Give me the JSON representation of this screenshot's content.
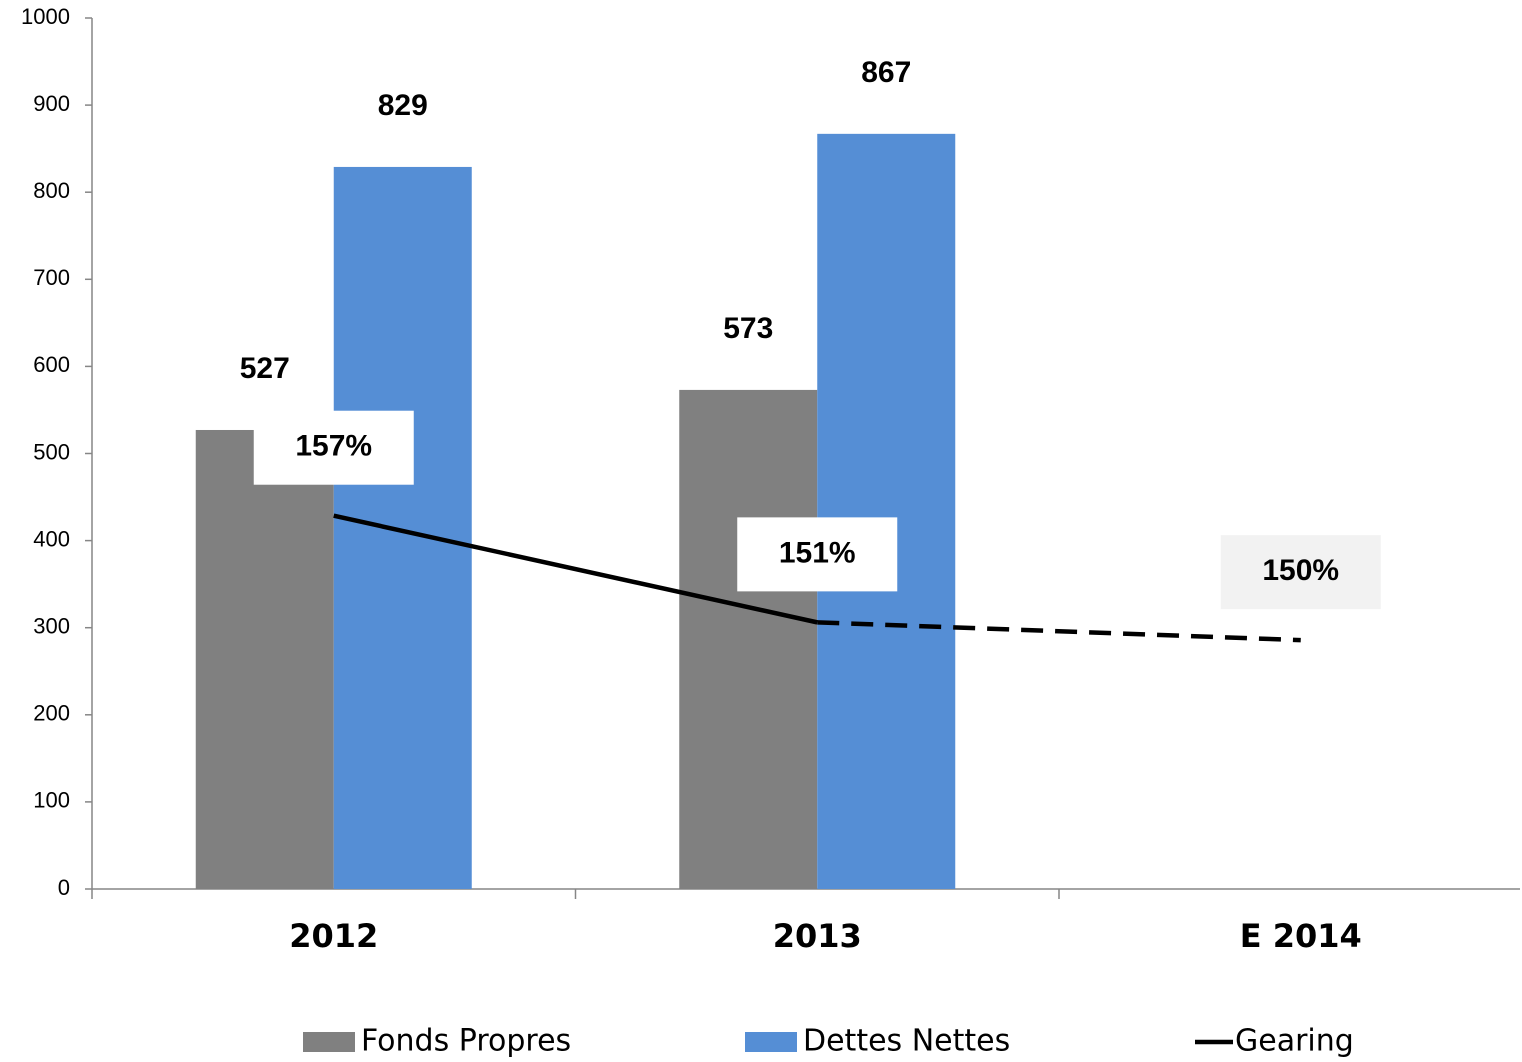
{
  "chart_data": {
    "type": "bar",
    "categories": [
      "2012",
      "2013",
      "E 2014"
    ],
    "series": [
      {
        "name": "Fonds Propres",
        "color": "#808080",
        "values": [
          527,
          573,
          null
        ]
      },
      {
        "name": "Dettes Nettes",
        "color": "#558ed5",
        "values": [
          829,
          867,
          null
        ]
      },
      {
        "name": "Gearing",
        "type": "line",
        "axis": "y2",
        "color": "#000000",
        "values": [
          157,
          151,
          150
        ],
        "value_labels": [
          "157%",
          "151%",
          "150%"
        ],
        "dash_from_index": 1
      }
    ],
    "ylim": [
      0,
      1000
    ],
    "yticks": [
      0,
      100,
      200,
      300,
      400,
      500,
      600,
      700,
      800,
      900,
      1000
    ],
    "y2lim": [
      136,
      185
    ],
    "grid": false,
    "legend": "bottom"
  }
}
